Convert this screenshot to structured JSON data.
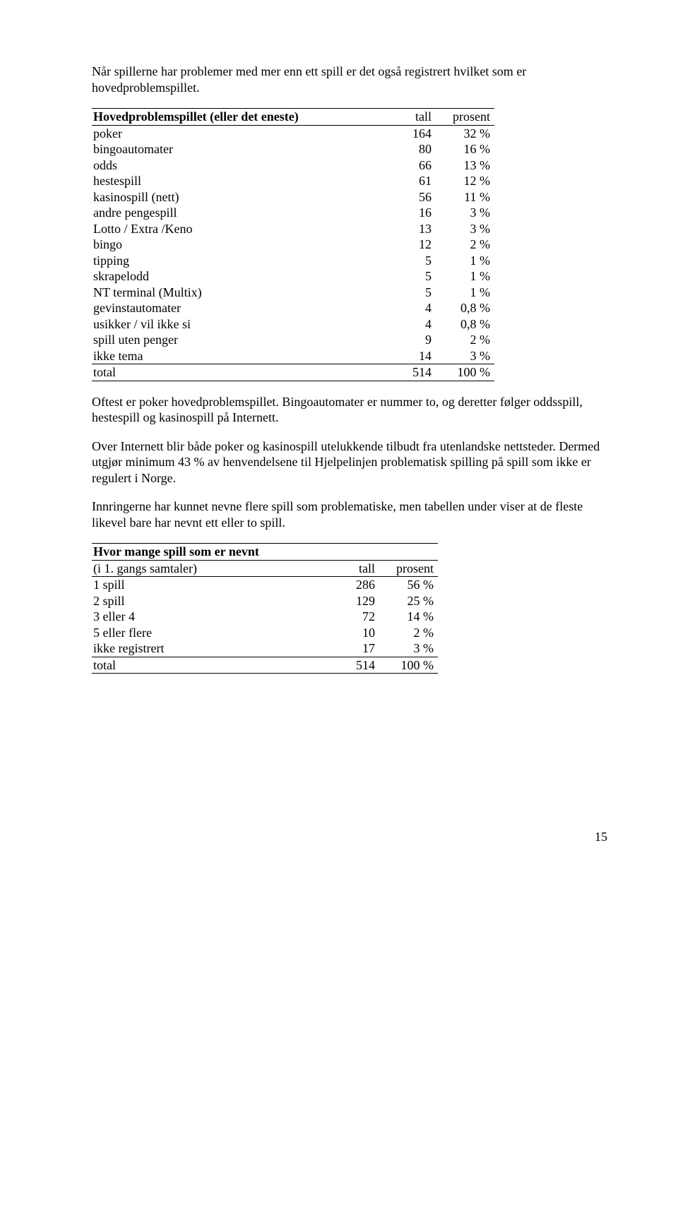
{
  "intro1": "Når spillerne har problemer med mer enn ett spill er det også registrert hvilket som er hovedproblemspillet.",
  "t1": {
    "title": "Hovedproblemspillet (eller det eneste)",
    "h1": "tall",
    "h2": "prosent",
    "rows": [
      {
        "label": "poker",
        "n": "164",
        "p": "32 %"
      },
      {
        "label": "bingoautomater",
        "n": "80",
        "p": "16 %"
      },
      {
        "label": "odds",
        "n": "66",
        "p": "13 %"
      },
      {
        "label": "hestespill",
        "n": "61",
        "p": "12 %"
      },
      {
        "label": "kasinospill (nett)",
        "n": "56",
        "p": "11 %"
      },
      {
        "label": "andre pengespill",
        "n": "16",
        "p": "3 %"
      },
      {
        "label": "Lotto / Extra /Keno",
        "n": "13",
        "p": "3 %"
      },
      {
        "label": "bingo",
        "n": "12",
        "p": "2 %"
      },
      {
        "label": "tipping",
        "n": "5",
        "p": "1 %"
      },
      {
        "label": "skrapelodd",
        "n": "5",
        "p": "1 %"
      },
      {
        "label": "NT terminal (Multix)",
        "n": "5",
        "p": "1 %"
      },
      {
        "label": "gevinstautomater",
        "n": "4",
        "p": "0,8 %"
      },
      {
        "label": "usikker / vil ikke si",
        "n": "4",
        "p": "0,8 %"
      },
      {
        "label": "spill uten penger",
        "n": "9",
        "p": "2 %"
      },
      {
        "label": "ikke tema",
        "n": "14",
        "p": "3 %"
      }
    ],
    "total": {
      "label": "total",
      "n": "514",
      "p": "100 %"
    }
  },
  "para1": "Oftest er poker hovedproblemspillet. Bingoautomater er nummer to, og deretter følger oddsspill, hestespill og kasinospill på Internett.",
  "para2": "Over Internett blir både poker og kasinospill utelukkende tilbudt fra utenlandske nettsteder. Dermed utgjør minimum 43 % av henvendelsene til Hjelpelinjen problematisk spilling på spill som ikke er regulert i Norge.",
  "para3": "Innringerne har kunnet nevne flere spill som problematiske, men tabellen under viser at de fleste likevel bare har nevnt ett eller to spill.",
  "t2": {
    "title1": "Hvor mange spill som er nevnt",
    "title2": "(i 1. gangs samtaler)",
    "h1": "tall",
    "h2": "prosent",
    "rows": [
      {
        "label": "1 spill",
        "n": "286",
        "p": "56 %"
      },
      {
        "label": "2 spill",
        "n": "129",
        "p": "25 %"
      },
      {
        "label": "3 eller 4",
        "n": "72",
        "p": "14 %"
      },
      {
        "label": "5 eller flere",
        "n": "10",
        "p": "2 %"
      },
      {
        "label": "ikke registrert",
        "n": "17",
        "p": "3 %"
      }
    ],
    "total": {
      "label": "total",
      "n": "514",
      "p": "100 %"
    }
  },
  "page": "15"
}
